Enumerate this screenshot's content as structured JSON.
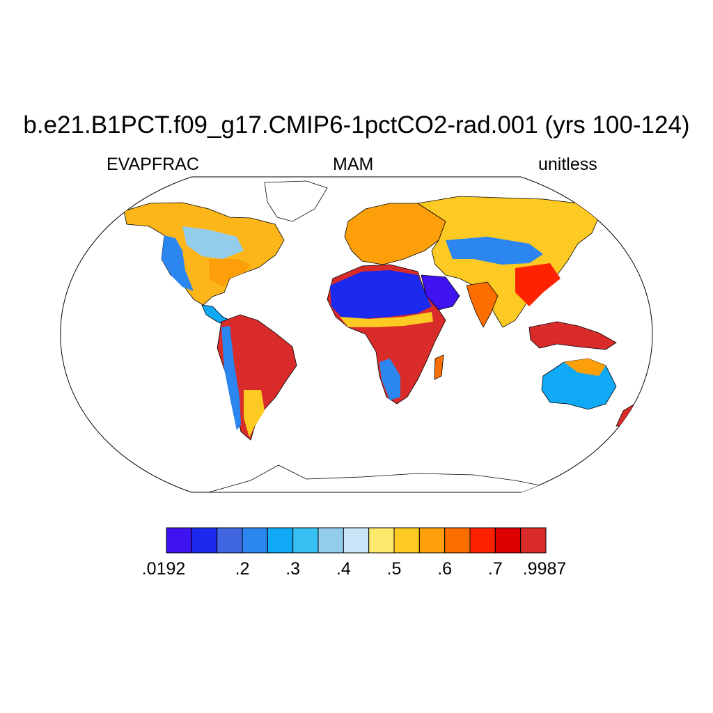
{
  "figure": {
    "title": "b.e21.B1PCT.f09_g17.CMIP6-1pctCO2-rad.001 (yrs 100-124)",
    "left_label": "EVAPFRAC",
    "center_label": "MAM",
    "right_label": "unitless"
  },
  "colorbar": {
    "colors": [
      "#3f13f0",
      "#1c29ee",
      "#4167e0",
      "#2c86f0",
      "#0fa9f5",
      "#37c1f3",
      "#93cdec",
      "#c8e6f8",
      "#fde96b",
      "#fdc923",
      "#fd9f08",
      "#fd6e00",
      "#fd2200",
      "#df0002",
      "#d82b2a"
    ],
    "tick_labels": [
      ".0192",
      ".2",
      ".3",
      ".4",
      ".5",
      ".6",
      ".7",
      ".9987"
    ]
  },
  "map": {
    "projection": "Robinson",
    "variable": "EVAPFRAC",
    "range": [
      0.0192,
      0.9987
    ]
  }
}
